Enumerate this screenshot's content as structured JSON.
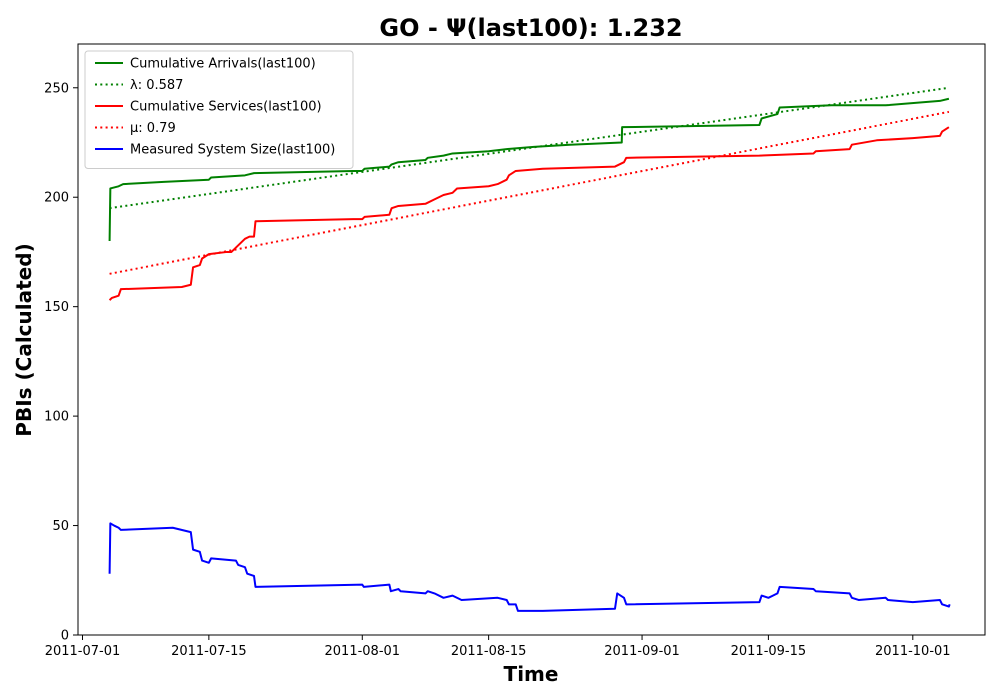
{
  "chart_data": {
    "type": "line",
    "title": "GO -  Ψ(last100): 1.232",
    "xlabel": "Time",
    "ylabel": "PBIs (Calculated)",
    "x_axis_type": "date",
    "xlim": [
      "2011-06-30T12:00",
      "2011-10-09"
    ],
    "ylim": [
      0,
      270
    ],
    "x_ticks": [
      "2011-07-01",
      "2011-07-15",
      "2011-08-01",
      "2011-08-15",
      "2011-09-01",
      "2011-09-15",
      "2011-10-01"
    ],
    "y_ticks": [
      0,
      50,
      100,
      150,
      200,
      250
    ],
    "grid": false,
    "legend_position": "top-left",
    "series": [
      {
        "name": "Cumulative Arrivals(last100)",
        "color": "#008000",
        "style": "solid",
        "points": [
          [
            "2011-07-04",
            180
          ],
          [
            "2011-07-04T02:00",
            204
          ],
          [
            "2011-07-05",
            205
          ],
          [
            "2011-07-05T12:00",
            206
          ],
          [
            "2011-07-10",
            207
          ],
          [
            "2011-07-15",
            208
          ],
          [
            "2011-07-15T06:00",
            209
          ],
          [
            "2011-07-19",
            210
          ],
          [
            "2011-07-20",
            211
          ],
          [
            "2011-07-31",
            212
          ],
          [
            "2011-08-01",
            212
          ],
          [
            "2011-08-01T06:00",
            213
          ],
          [
            "2011-08-04",
            214
          ],
          [
            "2011-08-04T06:00",
            215
          ],
          [
            "2011-08-05",
            216
          ],
          [
            "2011-08-08",
            217
          ],
          [
            "2011-08-08T06:00",
            218
          ],
          [
            "2011-08-10",
            219
          ],
          [
            "2011-08-11",
            220
          ],
          [
            "2011-08-15",
            221
          ],
          [
            "2011-08-17",
            222
          ],
          [
            "2011-08-20",
            223
          ],
          [
            "2011-08-24",
            224
          ],
          [
            "2011-08-29T18:00",
            225
          ],
          [
            "2011-08-29T19:00",
            232
          ],
          [
            "2011-09-14",
            233
          ],
          [
            "2011-09-14T06:00",
            236
          ],
          [
            "2011-09-16",
            238
          ],
          [
            "2011-09-16T06:00",
            241
          ],
          [
            "2011-09-22",
            242
          ],
          [
            "2011-09-28",
            242
          ],
          [
            "2011-10-04",
            244
          ],
          [
            "2011-10-05",
            245
          ]
        ]
      },
      {
        "name": "λ: 0.587",
        "color": "#008000",
        "style": "dotted",
        "points": [
          [
            "2011-07-04",
            195
          ],
          [
            "2011-10-05",
            250
          ]
        ]
      },
      {
        "name": "Cumulative Services(last100)",
        "color": "#ff0000",
        "style": "solid",
        "points": [
          [
            "2011-07-04",
            153
          ],
          [
            "2011-07-04T06:00",
            154
          ],
          [
            "2011-07-05",
            155
          ],
          [
            "2011-07-05T06:00",
            158
          ],
          [
            "2011-07-12",
            159
          ],
          [
            "2011-07-13",
            160
          ],
          [
            "2011-07-13T06:00",
            168
          ],
          [
            "2011-07-14",
            169
          ],
          [
            "2011-07-14T06:00",
            172
          ],
          [
            "2011-07-15",
            174
          ],
          [
            "2011-07-17",
            175
          ],
          [
            "2011-07-17T12:00",
            175
          ],
          [
            "2011-07-18",
            177
          ],
          [
            "2011-07-19",
            181
          ],
          [
            "2011-07-19T12:00",
            182
          ],
          [
            "2011-07-20",
            182
          ],
          [
            "2011-07-20T04:00",
            189
          ],
          [
            "2011-07-31",
            190
          ],
          [
            "2011-08-01",
            190
          ],
          [
            "2011-08-01T06:00",
            191
          ],
          [
            "2011-08-04",
            192
          ],
          [
            "2011-08-04T06:00",
            195
          ],
          [
            "2011-08-05",
            196
          ],
          [
            "2011-08-08",
            197
          ],
          [
            "2011-08-09",
            199
          ],
          [
            "2011-08-10",
            201
          ],
          [
            "2011-08-11",
            202
          ],
          [
            "2011-08-11T12:00",
            204
          ],
          [
            "2011-08-15",
            205
          ],
          [
            "2011-08-16",
            206
          ],
          [
            "2011-08-17",
            208
          ],
          [
            "2011-08-17T06:00",
            210
          ],
          [
            "2011-08-18",
            212
          ],
          [
            "2011-08-21",
            213
          ],
          [
            "2011-08-29",
            214
          ],
          [
            "2011-08-30",
            216
          ],
          [
            "2011-08-30T06:00",
            218
          ],
          [
            "2011-09-14",
            219
          ],
          [
            "2011-09-20",
            220
          ],
          [
            "2011-09-20T06:00",
            221
          ],
          [
            "2011-09-24",
            222
          ],
          [
            "2011-09-24T06:00",
            224
          ],
          [
            "2011-09-27",
            226
          ],
          [
            "2011-10-01",
            227
          ],
          [
            "2011-10-04",
            228
          ],
          [
            "2011-10-04T06:00",
            230
          ],
          [
            "2011-10-05",
            232
          ]
        ]
      },
      {
        "name": "μ: 0.79",
        "color": "#ff0000",
        "style": "dotted",
        "points": [
          [
            "2011-07-04",
            165
          ],
          [
            "2011-10-05",
            239
          ]
        ]
      },
      {
        "name": "Measured System Size(last100)",
        "color": "#0000ff",
        "style": "solid",
        "points": [
          [
            "2011-07-04",
            28
          ],
          [
            "2011-07-04T02:00",
            51
          ],
          [
            "2011-07-04T12:00",
            50
          ],
          [
            "2011-07-05",
            49
          ],
          [
            "2011-07-05T06:00",
            48
          ],
          [
            "2011-07-11",
            49
          ],
          [
            "2011-07-13",
            47
          ],
          [
            "2011-07-13T06:00",
            39
          ],
          [
            "2011-07-14",
            38
          ],
          [
            "2011-07-14T06:00",
            34
          ],
          [
            "2011-07-15",
            33
          ],
          [
            "2011-07-15T06:00",
            35
          ],
          [
            "2011-07-18",
            34
          ],
          [
            "2011-07-18T06:00",
            32
          ],
          [
            "2011-07-19",
            31
          ],
          [
            "2011-07-19T06:00",
            28
          ],
          [
            "2011-07-20",
            27
          ],
          [
            "2011-07-20T04:00",
            22
          ],
          [
            "2011-08-01",
            23
          ],
          [
            "2011-08-01T04:00",
            22
          ],
          [
            "2011-08-04",
            23
          ],
          [
            "2011-08-04T04:00",
            20
          ],
          [
            "2011-08-05",
            21
          ],
          [
            "2011-08-05T06:00",
            20
          ],
          [
            "2011-08-08",
            19
          ],
          [
            "2011-08-08T06:00",
            20
          ],
          [
            "2011-08-09",
            19
          ],
          [
            "2011-08-10",
            17
          ],
          [
            "2011-08-11",
            18
          ],
          [
            "2011-08-12",
            16
          ],
          [
            "2011-08-16",
            17
          ],
          [
            "2011-08-17",
            16
          ],
          [
            "2011-08-17T06:00",
            14
          ],
          [
            "2011-08-18",
            14
          ],
          [
            "2011-08-18T06:00",
            11
          ],
          [
            "2011-08-21",
            11
          ],
          [
            "2011-08-29",
            12
          ],
          [
            "2011-08-29T06:00",
            19
          ],
          [
            "2011-08-30",
            17
          ],
          [
            "2011-08-30T06:00",
            14
          ],
          [
            "2011-09-14",
            15
          ],
          [
            "2011-09-14T06:00",
            18
          ],
          [
            "2011-09-15",
            17
          ],
          [
            "2011-09-15T12:00",
            18
          ],
          [
            "2011-09-16",
            19
          ],
          [
            "2011-09-16T06:00",
            22
          ],
          [
            "2011-09-20",
            21
          ],
          [
            "2011-09-20T06:00",
            20
          ],
          [
            "2011-09-24",
            19
          ],
          [
            "2011-09-24T06:00",
            17
          ],
          [
            "2011-09-25",
            16
          ],
          [
            "2011-09-28",
            17
          ],
          [
            "2011-09-28T06:00",
            16
          ],
          [
            "2011-10-01",
            15
          ],
          [
            "2011-10-04",
            16
          ],
          [
            "2011-10-04T06:00",
            14
          ],
          [
            "2011-10-05",
            13
          ],
          [
            "2011-10-05T02:00",
            14
          ]
        ]
      }
    ]
  }
}
